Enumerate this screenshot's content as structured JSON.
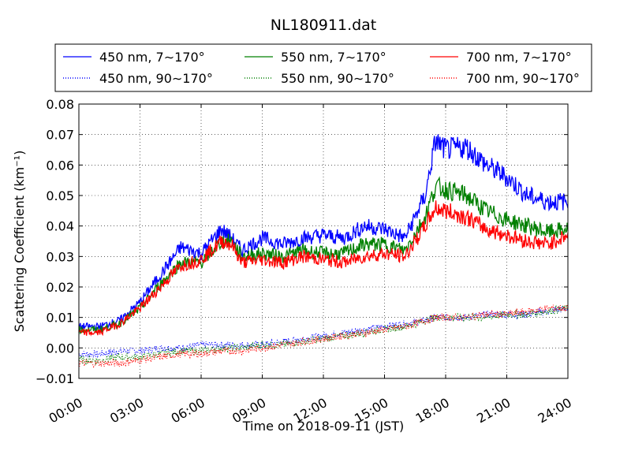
{
  "chart_data": {
    "type": "line",
    "title": "NL180911.dat",
    "xlabel": "Time on 2018-09-11 (JST)",
    "ylabel": "Scattering Coefficient (km⁻¹)",
    "xlim": [
      "00:00",
      "24:00"
    ],
    "ylim": [
      -0.01,
      0.08
    ],
    "xticks": [
      "00:00",
      "03:00",
      "06:00",
      "09:00",
      "12:00",
      "15:00",
      "18:00",
      "21:00",
      "24:00"
    ],
    "yticks": [
      "−0.01",
      "0.00",
      "0.01",
      "0.02",
      "0.03",
      "0.04",
      "0.05",
      "0.06",
      "0.07",
      "0.08"
    ],
    "grid": true,
    "legend_position": "top",
    "x": [
      0,
      1,
      2,
      3,
      4,
      5,
      6,
      7,
      7.5,
      8,
      9,
      10,
      11,
      12,
      13,
      14,
      15,
      16,
      17,
      17.5,
      18,
      19,
      20,
      21,
      22,
      23,
      24
    ],
    "series": [
      {
        "name": "450 nm, 7∼170°",
        "color": "#0000ff",
        "style": "solid",
        "values": [
          0.007,
          0.007,
          0.009,
          0.015,
          0.024,
          0.033,
          0.031,
          0.039,
          0.036,
          0.032,
          0.036,
          0.034,
          0.036,
          0.037,
          0.036,
          0.04,
          0.039,
          0.036,
          0.05,
          0.068,
          0.065,
          0.066,
          0.06,
          0.056,
          0.05,
          0.048,
          0.048
        ]
      },
      {
        "name": "450 nm, 90∼170°",
        "color": "#0000ff",
        "style": "dotted",
        "values": [
          -0.002,
          -0.002,
          -0.001,
          -0.001,
          0.0,
          0.0,
          0.001,
          0.001,
          0.001,
          0.001,
          0.001,
          0.002,
          0.003,
          0.004,
          0.005,
          0.006,
          0.007,
          0.008,
          0.009,
          0.01,
          0.01,
          0.01,
          0.011,
          0.011,
          0.011,
          0.012,
          0.013
        ]
      },
      {
        "name": "550 nm, 7∼170°",
        "color": "#008000",
        "style": "solid",
        "values": [
          0.006,
          0.006,
          0.008,
          0.013,
          0.021,
          0.028,
          0.028,
          0.035,
          0.035,
          0.03,
          0.031,
          0.03,
          0.032,
          0.031,
          0.031,
          0.034,
          0.034,
          0.032,
          0.043,
          0.053,
          0.052,
          0.05,
          0.045,
          0.042,
          0.04,
          0.038,
          0.039
        ]
      },
      {
        "name": "550 nm, 90∼170°",
        "color": "#008000",
        "style": "dotted",
        "values": [
          -0.004,
          -0.004,
          -0.003,
          -0.003,
          -0.002,
          -0.001,
          -0.001,
          0.0,
          0.0,
          0.0,
          0.001,
          0.001,
          0.002,
          0.003,
          0.004,
          0.005,
          0.006,
          0.007,
          0.009,
          0.01,
          0.01,
          0.01,
          0.01,
          0.011,
          0.011,
          0.012,
          0.013
        ]
      },
      {
        "name": "700 nm, 7∼170°",
        "color": "#ff0000",
        "style": "solid",
        "values": [
          0.005,
          0.005,
          0.008,
          0.013,
          0.02,
          0.027,
          0.029,
          0.035,
          0.034,
          0.028,
          0.029,
          0.028,
          0.03,
          0.029,
          0.028,
          0.03,
          0.031,
          0.03,
          0.04,
          0.046,
          0.045,
          0.043,
          0.039,
          0.037,
          0.035,
          0.034,
          0.037
        ]
      },
      {
        "name": "700 nm, 90∼170°",
        "color": "#ff0000",
        "style": "dotted",
        "values": [
          -0.005,
          -0.005,
          -0.005,
          -0.004,
          -0.003,
          -0.002,
          -0.002,
          -0.001,
          -0.001,
          -0.001,
          0.0,
          0.001,
          0.002,
          0.003,
          0.004,
          0.005,
          0.006,
          0.007,
          0.009,
          0.01,
          0.01,
          0.01,
          0.011,
          0.011,
          0.012,
          0.013,
          0.013
        ]
      }
    ]
  }
}
